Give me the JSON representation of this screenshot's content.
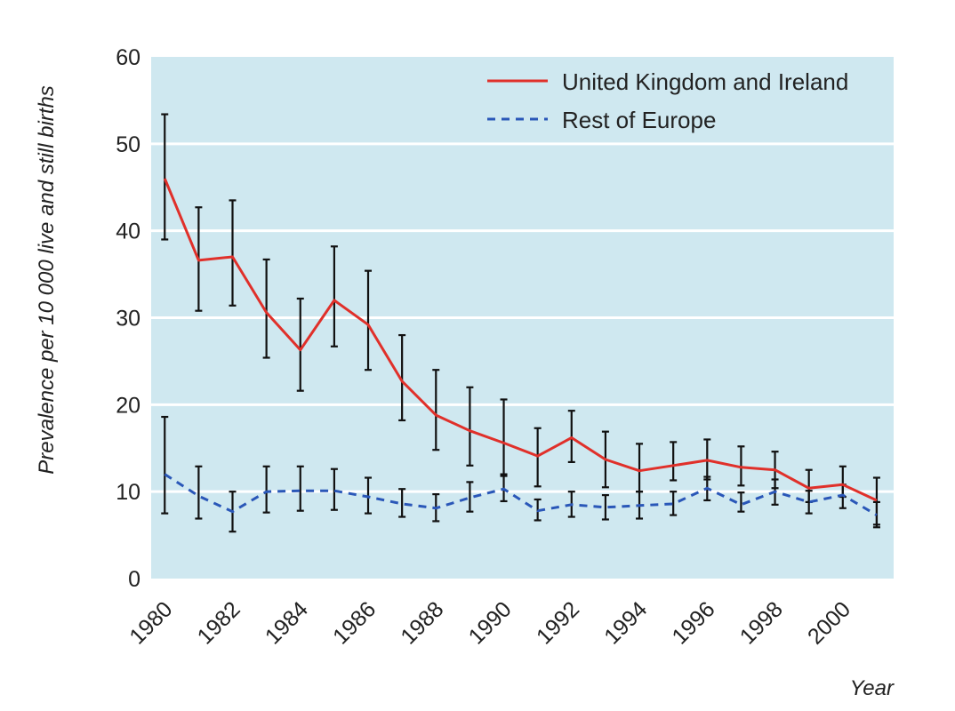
{
  "chart_data": {
    "type": "line",
    "title": "",
    "xlabel": "Year",
    "ylabel": "Prevalence per 10 000 live and still births",
    "x": [
      1980,
      1981,
      1982,
      1983,
      1984,
      1985,
      1986,
      1987,
      1988,
      1989,
      1990,
      1991,
      1992,
      1993,
      1994,
      1995,
      1996,
      1997,
      1998,
      1999,
      2000,
      2001
    ],
    "xticks": [
      1980,
      1982,
      1984,
      1986,
      1988,
      1990,
      1992,
      1994,
      1996,
      1998,
      2000
    ],
    "yticks": [
      0,
      10,
      20,
      30,
      40,
      50,
      60
    ],
    "xlim": [
      1979.6,
      2001.5
    ],
    "ylim": [
      0,
      60
    ],
    "grid": true,
    "legend_position": "top-right",
    "series": [
      {
        "name": "United Kingdom and Ireland",
        "color": "#e0302a",
        "style": "solid",
        "values": [
          46,
          36.6,
          37,
          30.6,
          26.3,
          32,
          29.2,
          22.7,
          18.8,
          17,
          15.6,
          14.1,
          16.2,
          13.7,
          12.4,
          13,
          13.6,
          12.8,
          12.5,
          10.4,
          10.8,
          9
        ],
        "lower": [
          39,
          30.8,
          31.4,
          25.4,
          21.6,
          26.7,
          24,
          18.2,
          14.8,
          13,
          11.8,
          10.6,
          13.4,
          10.5,
          10,
          11.3,
          11.4,
          10.7,
          10.4,
          8.8,
          9.4,
          6.2
        ],
        "upper": [
          53.4,
          42.7,
          43.5,
          36.7,
          32.2,
          38.2,
          35.4,
          28,
          24,
          22,
          20.6,
          17.3,
          19.3,
          16.9,
          15.5,
          15.7,
          16,
          15.2,
          14.6,
          12.5,
          12.9,
          11.6
        ]
      },
      {
        "name": "Rest of Europe",
        "color": "#2a57b8",
        "style": "dashed",
        "values": [
          12,
          9.5,
          7.7,
          10,
          10.1,
          10.1,
          9.4,
          8.6,
          8.1,
          9.3,
          10.3,
          7.8,
          8.5,
          8.2,
          8.4,
          8.6,
          10.4,
          8.5,
          10,
          8.8,
          9.6,
          7.3
        ],
        "lower": [
          7.5,
          6.9,
          5.4,
          7.6,
          7.8,
          7.9,
          7.5,
          7.1,
          6.6,
          7.7,
          8.9,
          6.7,
          7.1,
          6.8,
          6.9,
          7.3,
          9,
          7.7,
          8.5,
          7.5,
          8.1,
          5.9
        ],
        "upper": [
          18.6,
          12.9,
          10,
          12.9,
          12.9,
          12.6,
          11.6,
          10.3,
          9.7,
          11.1,
          12,
          9.1,
          10,
          9.6,
          10,
          10,
          11.7,
          9.9,
          11.4,
          10.1,
          10.8,
          8.8
        ]
      }
    ]
  }
}
